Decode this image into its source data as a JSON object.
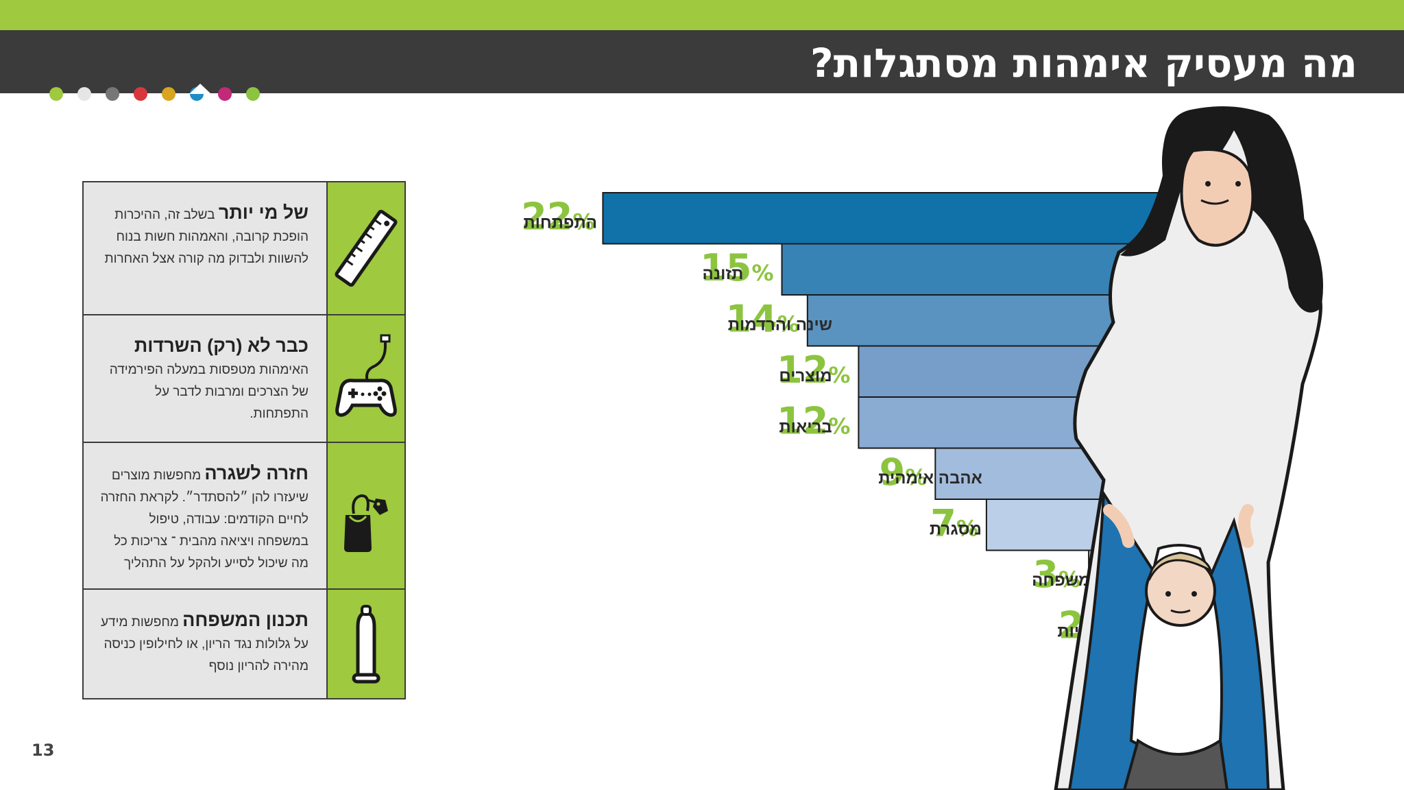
{
  "header": {
    "title": "מה מעסיק אימהות מסתגלות?",
    "dot_colors": [
      "#9fc93e",
      "#e6e6e6",
      "#777777",
      "#d8383c",
      "#d9a520",
      "#1c8fc6",
      "#c2297a",
      "#8cc440"
    ]
  },
  "panel": {
    "rows": [
      {
        "heading": "של מי יותר",
        "body": "בשלב זה, ההיכרות הופכת קרובה, והאמהות חשות בנוח להשוות ולבדוק מה קורה אצל האחרות",
        "icon": "ruler-icon"
      },
      {
        "heading": "כבר לא (רק) השרדות",
        "body": "האימהות מטפסות במעלה הפירמידה של הצרכים ומרבות לדבר על התפתחות.",
        "icon": "gamepad-icon"
      },
      {
        "heading": "חזרה לשגרה",
        "body": "מחפשות מוצרים שיעזרו להן ״להסתדר״. לקראת החזרה לחיים הקודמים: עבודה, טיפול במשפחה ויציאה מהבית ־ צריכות כל מה שיכול לסייע ולהקל על התהליך",
        "icon": "shopping-bag-icon"
      },
      {
        "heading": "תכנון המשפחה",
        "body": "מחפשות מידע על גלולות נגד הריון, או לחילופין כניסה מהירה להריון נוסף",
        "icon": "condom-icon"
      }
    ]
  },
  "chart_data": {
    "type": "bar",
    "orientation": "horizontal",
    "categories": [
      "התפתחות",
      "תזונה",
      "שינה והרדמות",
      "מוצרים",
      "בריאות",
      "אהבה אימהית",
      "מסגרת",
      "יחסים עם המשפחה",
      "זוגיות ומיניות"
    ],
    "values": [
      22,
      15,
      14,
      12,
      12,
      9,
      7,
      3,
      2
    ],
    "value_labels": [
      "22",
      "15",
      "14",
      "12",
      "12",
      "9",
      "7",
      "3",
      "2"
    ],
    "unit": "%",
    "colors": [
      "#1172a9",
      "#3783b5",
      "#5a93c0",
      "#769ec9",
      "#8aabd2",
      "#a2bcdd",
      "#bccfe8",
      "#d6e1f0",
      "#e9eef7"
    ],
    "value_color": "#8cc440"
  },
  "page_number": "13"
}
